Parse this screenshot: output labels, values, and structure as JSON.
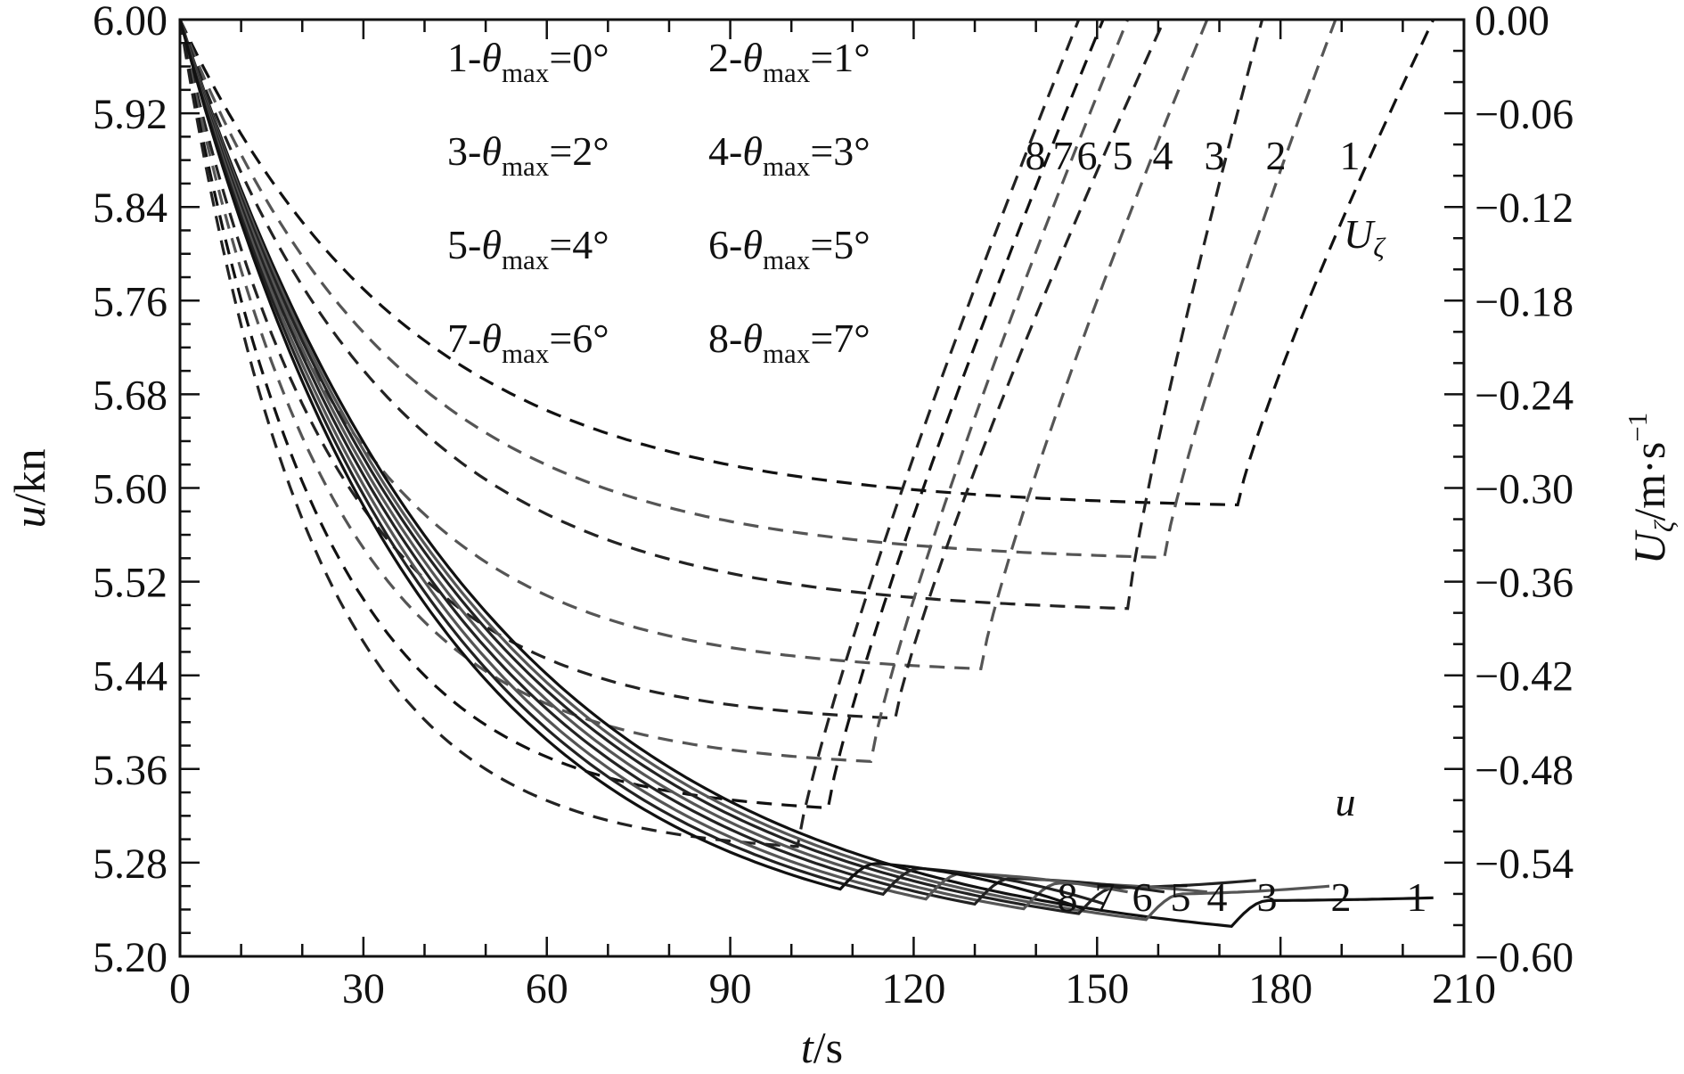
{
  "chart_data": {
    "type": "line",
    "xlabel": {
      "var": "t",
      "unit": "/s"
    },
    "ylabel_left": {
      "var": "u",
      "unit": "/kn"
    },
    "ylabel_right": {
      "var": "U",
      "sub": "ζ",
      "unit": "/m·s",
      "sup": "−1"
    },
    "xlim": [
      0,
      210
    ],
    "ylim_left": [
      5.2,
      6.0
    ],
    "ylim_right": [
      -0.6,
      0.0
    ],
    "x_ticks": [
      "0",
      "30",
      "60",
      "90",
      "120",
      "150",
      "180",
      "210"
    ],
    "y_left_ticks": [
      "5.20",
      "5.28",
      "5.36",
      "5.44",
      "5.52",
      "5.60",
      "5.68",
      "5.76",
      "5.84",
      "5.92",
      "6.00"
    ],
    "y_right_ticks": [
      "−0.60",
      "−0.54",
      "−0.48",
      "−0.42",
      "−0.36",
      "−0.30",
      "−0.24",
      "−0.18",
      "−0.12",
      "−0.06",
      "0.00"
    ],
    "grid": false,
    "legend": {
      "placement": "top-left",
      "entries": [
        {
          "prefix": "1-",
          "sym": "θ",
          "sub": "max",
          "suffix": "=0°"
        },
        {
          "prefix": "2-",
          "sym": "θ",
          "sub": "max",
          "suffix": "=1°"
        },
        {
          "prefix": "3-",
          "sym": "θ",
          "sub": "max",
          "suffix": "=2°"
        },
        {
          "prefix": "4-",
          "sym": "θ",
          "sub": "max",
          "suffix": "=3°"
        },
        {
          "prefix": "5-",
          "sym": "θ",
          "sub": "max",
          "suffix": "=4°"
        },
        {
          "prefix": "6-",
          "sym": "θ",
          "sub": "max",
          "suffix": "=5°"
        },
        {
          "prefix": "7-",
          "sym": "θ",
          "sub": "max",
          "suffix": "=6°"
        },
        {
          "prefix": "8-",
          "sym": "θ",
          "sub": "max",
          "suffix": "=7°"
        }
      ]
    },
    "annotations": {
      "u_curve_label": "u",
      "U_curve_label": {
        "sym": "U",
        "sub": "ζ"
      },
      "u_curve_numbers": [
        "8",
        "7",
        "6",
        "5",
        "4",
        "3",
        "2",
        "1"
      ],
      "U_curve_numbers": [
        "8",
        "7",
        "6",
        "5",
        "4",
        "3",
        "2",
        "1"
      ]
    },
    "series_u": [
      {
        "id": "1",
        "axis": "left",
        "style": "solid",
        "color": "#111111",
        "k": 0.02,
        "c": 5.2,
        "t_bump": 172,
        "t_end": 205,
        "u_end": 5.25
      },
      {
        "id": "2",
        "axis": "left",
        "style": "solid",
        "color": "#555555",
        "k": 0.0205,
        "c": 5.2,
        "t_bump": 158,
        "t_end": 188,
        "u_end": 5.26
      },
      {
        "id": "3",
        "axis": "left",
        "style": "solid",
        "color": "#222222",
        "k": 0.021,
        "c": 5.2,
        "t_bump": 147,
        "t_end": 176,
        "u_end": 5.265
      },
      {
        "id": "4",
        "axis": "left",
        "style": "solid",
        "color": "#555555",
        "k": 0.0216,
        "c": 5.2,
        "t_bump": 138,
        "t_end": 168,
        "u_end": 5.255
      },
      {
        "id": "5",
        "axis": "left",
        "style": "solid",
        "color": "#222222",
        "k": 0.0222,
        "c": 5.2,
        "t_bump": 130,
        "t_end": 161,
        "u_end": 5.255
      },
      {
        "id": "6",
        "axis": "left",
        "style": "solid",
        "color": "#555555",
        "k": 0.0229,
        "c": 5.2,
        "t_bump": 122,
        "t_end": 155,
        "u_end": 5.255
      },
      {
        "id": "7",
        "axis": "left",
        "style": "solid",
        "color": "#222222",
        "k": 0.0236,
        "c": 5.2,
        "t_bump": 115,
        "t_end": 151,
        "u_end": 5.245
      },
      {
        "id": "8",
        "axis": "left",
        "style": "solid",
        "color": "#111111",
        "k": 0.0244,
        "c": 5.2,
        "t_bump": 108,
        "t_end": 148,
        "u_end": 5.24
      }
    ],
    "series_U": [
      {
        "id": "1",
        "axis": "right",
        "style": "dashed",
        "color": "#111111",
        "plateau": -0.314,
        "t_min": 173,
        "t_zero": 205
      },
      {
        "id": "2",
        "axis": "right",
        "style": "dashed",
        "color": "#555555",
        "plateau": -0.348,
        "t_min": 161,
        "t_zero": 189
      },
      {
        "id": "3",
        "axis": "right",
        "style": "dashed",
        "color": "#222222",
        "plateau": -0.381,
        "t_min": 155,
        "t_zero": 177
      },
      {
        "id": "4",
        "axis": "right",
        "style": "dashed",
        "color": "#555555",
        "plateau": -0.42,
        "t_min": 131,
        "t_zero": 168
      },
      {
        "id": "5",
        "axis": "right",
        "style": "dashed",
        "color": "#222222",
        "plateau": -0.452,
        "t_min": 117,
        "t_zero": 161
      },
      {
        "id": "6",
        "axis": "right",
        "style": "dashed",
        "color": "#555555",
        "plateau": -0.48,
        "t_min": 113,
        "t_zero": 155
      },
      {
        "id": "7",
        "axis": "right",
        "style": "dashed",
        "color": "#111111",
        "plateau": -0.51,
        "t_min": 106,
        "t_zero": 151
      },
      {
        "id": "8",
        "axis": "right",
        "style": "dashed",
        "color": "#222222",
        "plateau": -0.535,
        "t_min": 101,
        "t_zero": 147
      }
    ]
  }
}
